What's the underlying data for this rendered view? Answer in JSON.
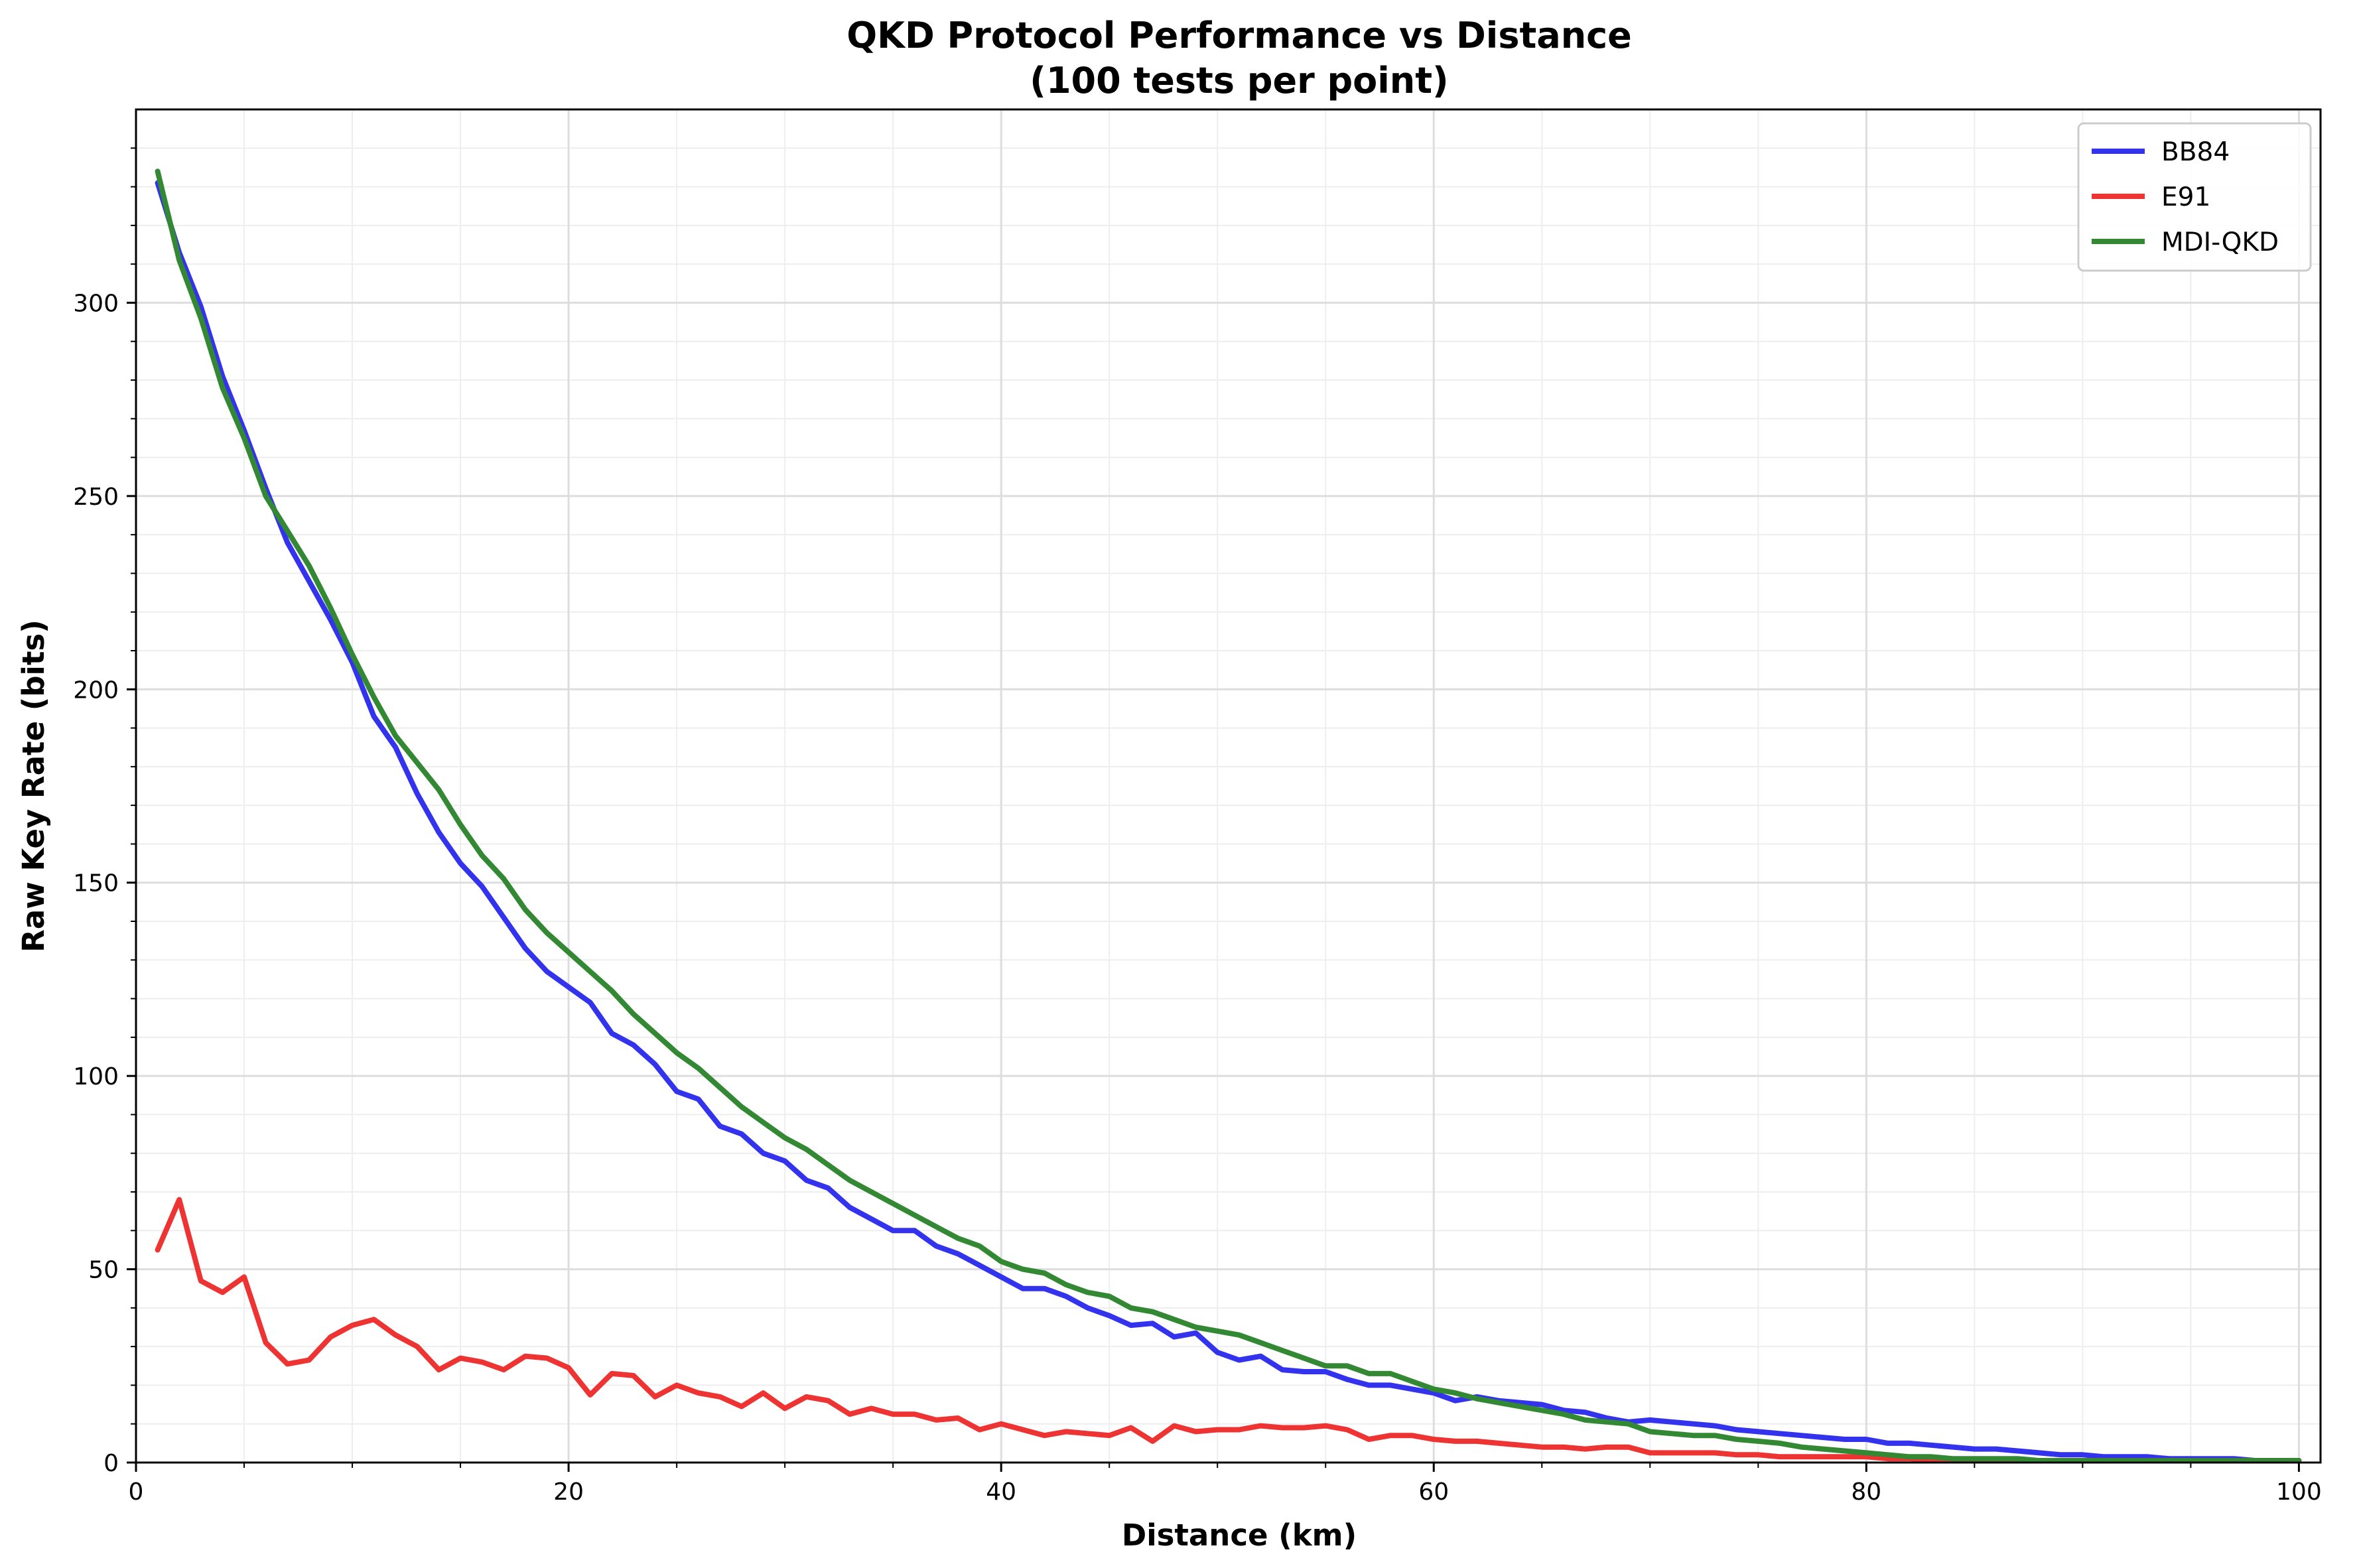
{
  "chart_data": {
    "type": "line",
    "title_line1": "QKD Protocol Performance vs Distance",
    "title_line2": "(100 tests per point)",
    "xlabel": "Distance (km)",
    "ylabel": "Raw Key Rate (bits)",
    "xlim": [
      0,
      101
    ],
    "ylim": [
      0,
      350
    ],
    "xticks": [
      0,
      20,
      40,
      60,
      80,
      100
    ],
    "yticks": [
      0,
      50,
      100,
      150,
      200,
      250,
      300
    ],
    "grid": true,
    "legend_position": "top-right",
    "x": [
      1,
      2,
      3,
      4,
      5,
      6,
      7,
      8,
      9,
      10,
      11,
      12,
      13,
      14,
      15,
      16,
      17,
      18,
      19,
      20,
      21,
      22,
      23,
      24,
      25,
      26,
      27,
      28,
      29,
      30,
      31,
      32,
      33,
      34,
      35,
      36,
      37,
      38,
      39,
      40,
      41,
      42,
      43,
      44,
      45,
      46,
      47,
      48,
      49,
      50,
      51,
      52,
      53,
      54,
      55,
      56,
      57,
      58,
      59,
      60,
      61,
      62,
      63,
      64,
      65,
      66,
      67,
      68,
      69,
      70,
      71,
      72,
      73,
      74,
      75,
      76,
      77,
      78,
      79,
      80,
      81,
      82,
      83,
      84,
      85,
      86,
      87,
      88,
      89,
      90,
      91,
      92,
      93,
      94,
      95,
      96,
      97,
      98,
      99,
      100
    ],
    "series": [
      {
        "name": "BB84",
        "color": "#3333ee",
        "values": [
          331,
          313,
          299,
          281,
          267,
          252,
          238,
          228,
          218,
          207,
          193,
          185,
          173,
          163,
          155,
          149,
          141,
          133,
          127,
          123,
          119,
          111,
          108,
          103,
          96,
          94,
          87,
          85,
          80,
          78,
          73,
          71,
          66,
          63,
          60,
          60,
          56,
          54,
          51,
          48,
          45,
          45,
          43,
          40,
          38,
          35.5,
          36,
          32.5,
          33.5,
          28.5,
          26.5,
          27.5,
          24,
          23.5,
          23.5,
          21.5,
          20,
          20,
          19,
          18,
          16,
          17,
          16,
          15.5,
          15,
          13.5,
          13,
          11.5,
          10.5,
          11,
          10.5,
          10,
          9.5,
          8.5,
          8,
          7.5,
          7,
          6.5,
          6,
          6,
          5,
          5,
          4.5,
          4,
          3.5,
          3.5,
          3,
          2.5,
          2,
          2,
          1.5,
          1.5,
          1.5,
          1,
          1,
          1,
          1,
          0.5,
          0.5,
          0.5
        ],
        "stroke": 8
      },
      {
        "name": "E91",
        "color": "#ee3333",
        "values": [
          55,
          68,
          47,
          44,
          48,
          31,
          25.5,
          26.5,
          32.5,
          35.5,
          37,
          33,
          30,
          24,
          27,
          26,
          24,
          27.5,
          27,
          24.5,
          17.5,
          23,
          22.5,
          17,
          20,
          18,
          17,
          14.5,
          18,
          14,
          17,
          16,
          12.5,
          14,
          12.5,
          12.5,
          11,
          11.5,
          8.5,
          10,
          8.5,
          7,
          8,
          7.5,
          7,
          9,
          5.5,
          9.5,
          8,
          8.5,
          8.5,
          9.5,
          9,
          9,
          9.5,
          8.5,
          6,
          7,
          7,
          6,
          5.5,
          5.5,
          5,
          4.5,
          4,
          4,
          3.5,
          4,
          4,
          2.5,
          2.5,
          2.5,
          2.5,
          2,
          2,
          1.5,
          1.5,
          1.5,
          1.5,
          1.5,
          1,
          1,
          0.5,
          0.5,
          0.5,
          0.5,
          0.5,
          0.5,
          0.5,
          0.5,
          0.5,
          0.5,
          0.5,
          0.5,
          0.5,
          0.5,
          0.5,
          0.5,
          0.5,
          0.5
        ],
        "stroke": 8
      },
      {
        "name": "MDI-QKD",
        "color": "#338833",
        "values": [
          334,
          311,
          296,
          278,
          265,
          250,
          241,
          232,
          221,
          209,
          198,
          188,
          181,
          174,
          165,
          157,
          151,
          143,
          137,
          132,
          127,
          122,
          116,
          111,
          106,
          102,
          97,
          92,
          88,
          84,
          81,
          77,
          73,
          70,
          67,
          64,
          61,
          58,
          56,
          52,
          50,
          49,
          46,
          44,
          43,
          40,
          39,
          37,
          35,
          34,
          33,
          31,
          29,
          27,
          25,
          25,
          23,
          23,
          21,
          19,
          18,
          16.5,
          15.5,
          14.5,
          13.5,
          12.5,
          11,
          10.5,
          10,
          8,
          7.5,
          7,
          7,
          6,
          5.5,
          5,
          4,
          3.5,
          3,
          2.5,
          2,
          1.5,
          1.5,
          1,
          1,
          1,
          1,
          0.5,
          0.5,
          0.5,
          0.5,
          0.5,
          0.5,
          0.5,
          0.5,
          0.5,
          0.5,
          0.5,
          0.5,
          0.5
        ],
        "stroke": 8
      }
    ]
  }
}
